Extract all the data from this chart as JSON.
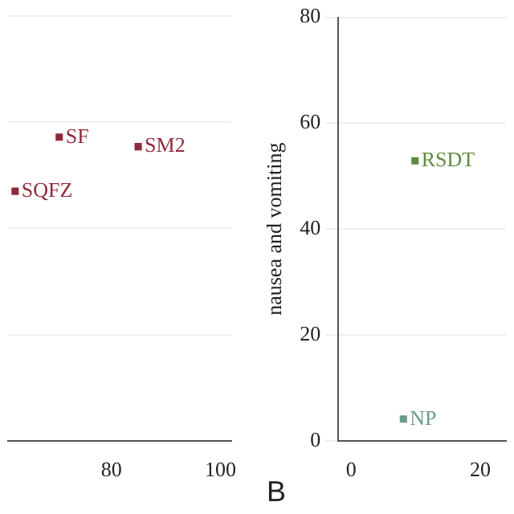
{
  "chart_data": [
    {
      "type": "scatter",
      "marker": "square",
      "grid": "y",
      "tick_labels": "x",
      "xlim": [
        61,
        102
      ],
      "xticks": [
        80,
        100
      ],
      "ylim": [
        0,
        80
      ],
      "yticks": [
        0,
        20,
        40,
        60,
        80
      ],
      "series": [
        {
          "name": "SF",
          "color": "#8e2a3a",
          "x": [
            70.4
          ],
          "values": [
            57.2
          ]
        },
        {
          "name": "SM2",
          "color": "#8e2a3a",
          "x": [
            84.9
          ],
          "values": [
            55.4
          ]
        },
        {
          "name": "SQFZ",
          "color": "#8e2a3a",
          "x": [
            62.3
          ],
          "values": [
            47
          ]
        }
      ]
    },
    {
      "type": "scatter",
      "marker": "square",
      "grid": "y",
      "ylabel": "nausea and vomiting",
      "xlim": [
        -2,
        24
      ],
      "xticks": [
        0,
        20
      ],
      "ylim": [
        0,
        80
      ],
      "yticks": [
        0,
        20,
        40,
        60,
        80
      ],
      "annotations": [
        "B"
      ],
      "series": [
        {
          "name": "RSDT",
          "color": "#5e8b3c",
          "x": [
            9.9
          ],
          "values": [
            52.9
          ]
        },
        {
          "name": "NP",
          "color": "#6b9a8c",
          "x": [
            8.1
          ],
          "values": [
            4.1
          ]
        }
      ]
    }
  ]
}
